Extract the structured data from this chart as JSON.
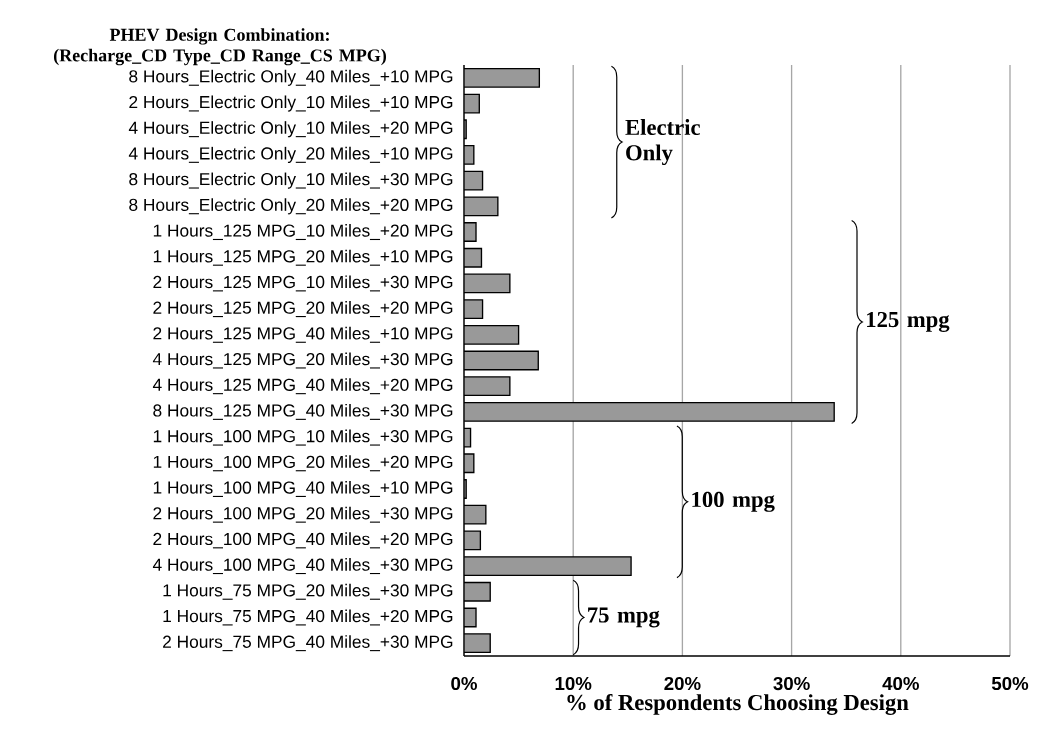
{
  "chart_data": {
    "type": "bar",
    "orientation": "horizontal",
    "ylabel": "PHEV Design Combination: (Recharge_CD Type_CD Range_CS MPG)",
    "xlabel": "% of Respondents Choosing Design",
    "categories": [
      "8 Hours_Electric Only_40 Miles_+10 MPG",
      "2 Hours_Electric Only_10 Miles_+10 MPG",
      "4 Hours_Electric Only_10 Miles_+20 MPG",
      "4 Hours_Electric Only_20 Miles_+10 MPG",
      "8 Hours_Electric Only_10 Miles_+30 MPG",
      "8 Hours_Electric Only_20 Miles_+20 MPG",
      "1 Hours_125 MPG_10 Miles_+20 MPG",
      "1 Hours_125 MPG_20 Miles_+10 MPG",
      "2 Hours_125 MPG_10 Miles_+30 MPG",
      "2 Hours_125 MPG_20 Miles_+20 MPG",
      "2 Hours_125 MPG_40 Miles_+10 MPG",
      "4 Hours_125 MPG_20 Miles_+30 MPG",
      "4 Hours_125 MPG_40 Miles_+20 MPG",
      "8 Hours_125 MPG_40 Miles_+30 MPG",
      "1 Hours_100 MPG_10 Miles_+30 MPG",
      "1 Hours_100 MPG_20 Miles_+20 MPG",
      "1 Hours_100 MPG_40 Miles_+10 MPG",
      "2 Hours_100 MPG_20 Miles_+30 MPG",
      "2 Hours_100 MPG_40 Miles_+20 MPG",
      "4 Hours_100 MPG_40 Miles_+30 MPG",
      "1 Hours_75 MPG_20 Miles_+30 MPG",
      "1 Hours_75 MPG_40 Miles_+20 MPG",
      "2 Hours_75 MPG_40 Miles_+30 MPG"
    ],
    "values": [
      6.9,
      1.4,
      0.2,
      0.9,
      1.7,
      3.1,
      1.1,
      1.6,
      4.2,
      1.7,
      5.0,
      6.8,
      4.2,
      33.9,
      0.6,
      0.9,
      0.2,
      2.0,
      1.5,
      15.3,
      2.4,
      1.1,
      2.4
    ],
    "color": "#999999",
    "xlim": [
      0,
      50
    ],
    "xticks": [
      {
        "value": 0,
        "label": "0%"
      },
      {
        "value": 10,
        "label": "10%"
      },
      {
        "value": 20,
        "label": "20%"
      },
      {
        "value": 30,
        "label": "30%"
      },
      {
        "value": 40,
        "label": "40%"
      },
      {
        "value": 50,
        "label": "50%"
      }
    ],
    "grid": "x",
    "annotations": [
      "Electric Only",
      "125 mpg",
      "100 mpg",
      "75 mpg"
    ]
  }
}
